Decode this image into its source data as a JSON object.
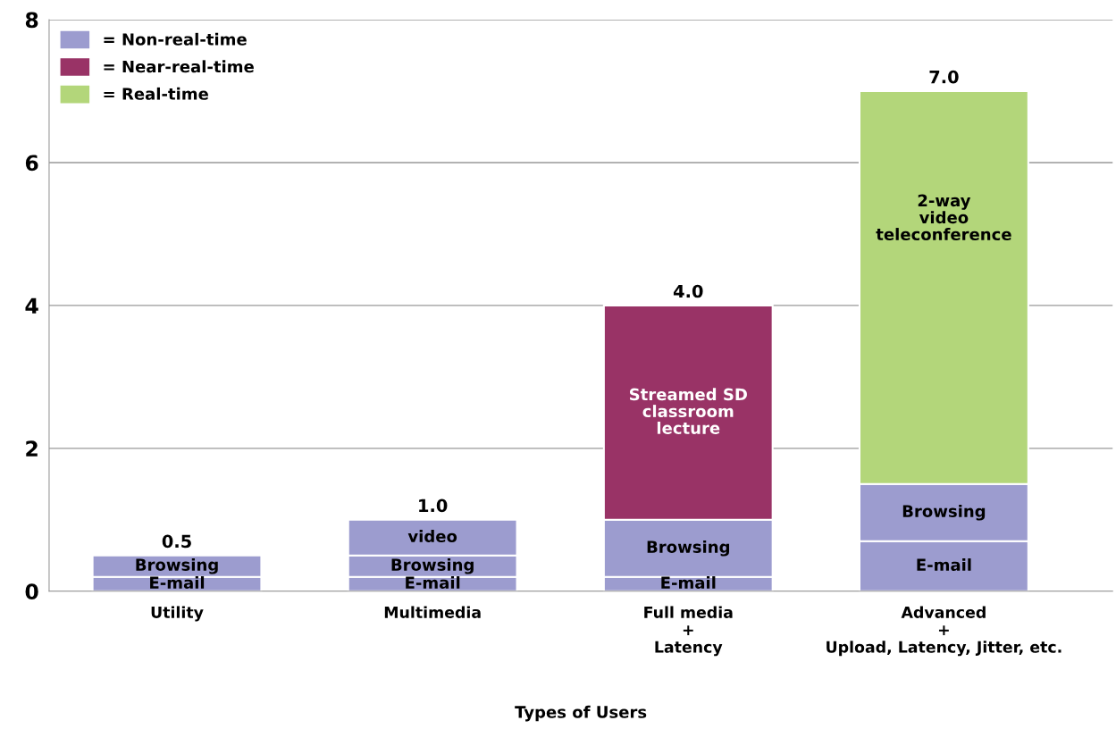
{
  "chart_data": {
    "type": "bar",
    "stacked": true,
    "xlabel": "Types of Users",
    "categories": [
      "Utility",
      "Multimedia",
      "Full media\n+\nLatency",
      "Advanced\n+\nUpload, Latency, Jitter, etc."
    ],
    "series": [
      {
        "name": "E-mail",
        "color": "#9c9ccf",
        "values": [
          0.2,
          0.2,
          0.2,
          0.7
        ]
      },
      {
        "name": "Browsing",
        "color": "#9c9ccf",
        "values": [
          0.3,
          0.3,
          0.8,
          0.8
        ]
      },
      {
        "name": "video",
        "color": "#9c9ccf",
        "values": [
          null,
          0.5,
          null,
          null
        ]
      },
      {
        "name": "Streamed SD\nclassroom\nlecture",
        "color": "#993366",
        "values": [
          null,
          null,
          3.0,
          null
        ]
      },
      {
        "name": "2-way\nvideo\nteleconference",
        "color": "#b3d67a",
        "values": [
          null,
          null,
          null,
          5.5
        ]
      },
      {
        "name": "= Non-real-time",
        "color": "#9c9ccf",
        "values": [
          null,
          null,
          null,
          null
        ]
      },
      {
        "name": "= Near-real-time",
        "color": "#993366",
        "values": [
          null,
          null,
          null,
          null
        ]
      },
      {
        "name": "= Real-time",
        "color": "#b3d67a",
        "values": [
          null,
          null,
          null,
          null
        ]
      }
    ],
    "totals": [
      "0.5",
      "1.0",
      "4.0",
      "7.0"
    ],
    "ylim": [
      0,
      8
    ],
    "yticks": [
      0,
      2,
      4,
      6,
      8
    ],
    "grid": "y",
    "legend": "top left"
  }
}
